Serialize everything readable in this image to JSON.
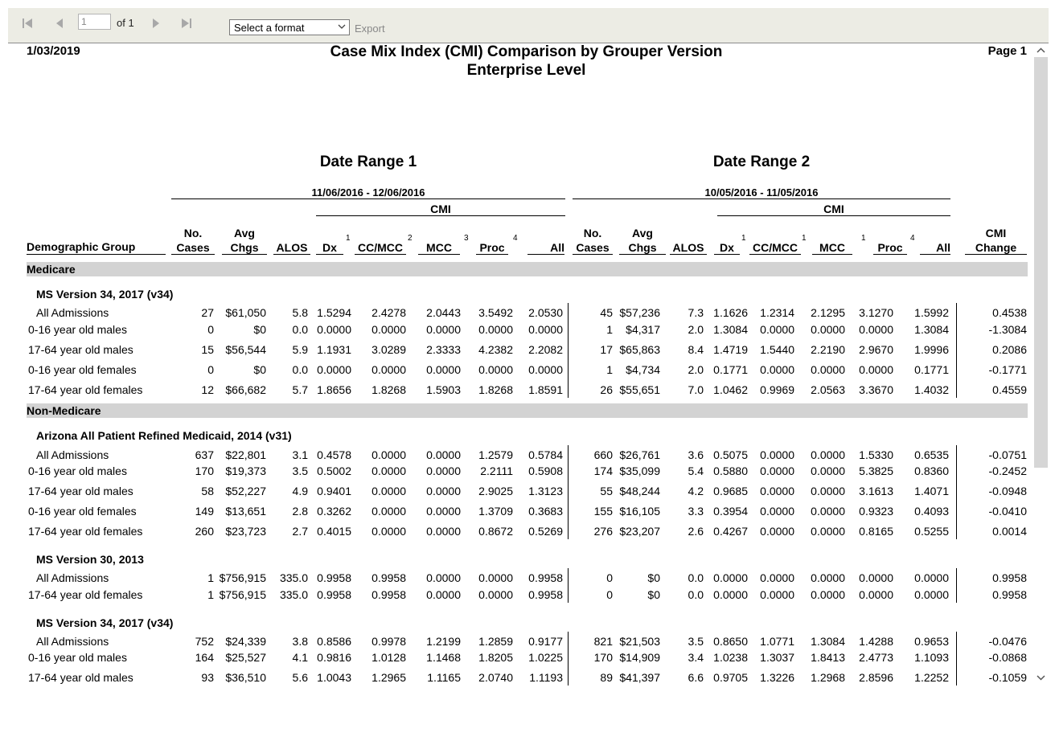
{
  "toolbar": {
    "page_value": "1",
    "page_count_label": "of 1",
    "format_select": "Select a format",
    "export_label": "Export",
    "icons": [
      "first-page-icon",
      "previous-page-icon",
      "next-page-icon",
      "last-page-icon"
    ]
  },
  "report": {
    "date": "1/03/2019",
    "title": "Case Mix Index (CMI) Comparison by Grouper Version",
    "subtitle": "Enterprise Level",
    "page_label": "Page 1",
    "range1_title": "Date Range 1",
    "range2_title": "Date Range 2",
    "range1_dates": "11/06/2016 - 12/06/2016",
    "range2_dates": "10/05/2016 - 11/05/2016",
    "cmi_label": "CMI",
    "columns": {
      "demographic": "Demographic Group",
      "no_cases_1": "No.",
      "no_cases_2": "Cases",
      "avg_chgs_1": "Avg",
      "avg_chgs_2": "Chgs",
      "alos": "ALOS",
      "dx": "Dx",
      "ccmcc": "CC/MCC",
      "mcc": "MCC",
      "proc": "Proc",
      "all": "All",
      "cmi_change_1": "CMI",
      "cmi_change_2": "Change"
    },
    "superscripts_range1": {
      "dx": "1",
      "ccmcc": "2",
      "mcc": "3",
      "proc": "4"
    },
    "superscripts_range2": {
      "dx": "1",
      "ccmcc": "1",
      "mcc": "1",
      "proc": "4"
    },
    "sections": [
      {
        "name": "Medicare",
        "groups": [
          {
            "name": "MS Version 34, 2017 (v34)",
            "rows": [
              {
                "label": "All Admissions",
                "r1": [
                  "27",
                  "$61,050",
                  "5.8",
                  "1.5294",
                  "2.4278",
                  "2.0443",
                  "3.5492",
                  "2.0530"
                ],
                "r2": [
                  "45",
                  "$57,236",
                  "7.3",
                  "1.1626",
                  "1.2314",
                  "2.1295",
                  "3.1270",
                  "1.5992"
                ],
                "chg": "0.4538"
              },
              {
                "label": "0-16 year old males",
                "r1": [
                  "0",
                  "$0",
                  "0.0",
                  "0.0000",
                  "0.0000",
                  "0.0000",
                  "0.0000",
                  "0.0000"
                ],
                "r2": [
                  "1",
                  "$4,317",
                  "2.0",
                  "1.3084",
                  "0.0000",
                  "0.0000",
                  "0.0000",
                  "1.3084"
                ],
                "chg": "-1.3084"
              },
              {
                "label": "17-64 year old males",
                "r1": [
                  "15",
                  "$56,544",
                  "5.9",
                  "1.1931",
                  "3.0289",
                  "2.3333",
                  "4.2382",
                  "2.2082"
                ],
                "r2": [
                  "17",
                  "$65,863",
                  "8.4",
                  "1.4719",
                  "1.5440",
                  "2.2190",
                  "2.9670",
                  "1.9996"
                ],
                "chg": "0.2086"
              },
              {
                "label": "0-16 year old females",
                "r1": [
                  "0",
                  "$0",
                  "0.0",
                  "0.0000",
                  "0.0000",
                  "0.0000",
                  "0.0000",
                  "0.0000"
                ],
                "r2": [
                  "1",
                  "$4,734",
                  "2.0",
                  "0.1771",
                  "0.0000",
                  "0.0000",
                  "0.0000",
                  "0.1771"
                ],
                "chg": "-0.1771"
              },
              {
                "label": "17-64 year old females",
                "r1": [
                  "12",
                  "$66,682",
                  "5.7",
                  "1.8656",
                  "1.8268",
                  "1.5903",
                  "1.8268",
                  "1.8591"
                ],
                "r2": [
                  "26",
                  "$55,651",
                  "7.0",
                  "1.0462",
                  "0.9969",
                  "2.0563",
                  "3.3670",
                  "1.4032"
                ],
                "chg": "0.4559"
              }
            ]
          }
        ]
      },
      {
        "name": "Non-Medicare",
        "groups": [
          {
            "name": "Arizona All Patient Refined Medicaid, 2014 (v31)",
            "rows": [
              {
                "label": "All Admissions",
                "r1": [
                  "637",
                  "$22,801",
                  "3.1",
                  "0.4578",
                  "0.0000",
                  "0.0000",
                  "1.2579",
                  "0.5784"
                ],
                "r2": [
                  "660",
                  "$26,761",
                  "3.6",
                  "0.5075",
                  "0.0000",
                  "0.0000",
                  "1.5330",
                  "0.6535"
                ],
                "chg": "-0.0751"
              },
              {
                "label": "0-16 year old males",
                "r1": [
                  "170",
                  "$19,373",
                  "3.5",
                  "0.5002",
                  "0.0000",
                  "0.0000",
                  "2.2111",
                  "0.5908"
                ],
                "r2": [
                  "174",
                  "$35,099",
                  "5.4",
                  "0.5880",
                  "0.0000",
                  "0.0000",
                  "5.3825",
                  "0.8360"
                ],
                "chg": "-0.2452"
              },
              {
                "label": "17-64 year old males",
                "r1": [
                  "58",
                  "$52,227",
                  "4.9",
                  "0.9401",
                  "0.0000",
                  "0.0000",
                  "2.9025",
                  "1.3123"
                ],
                "r2": [
                  "55",
                  "$48,244",
                  "4.2",
                  "0.9685",
                  "0.0000",
                  "0.0000",
                  "3.1613",
                  "1.4071"
                ],
                "chg": "-0.0948"
              },
              {
                "label": "0-16 year old females",
                "r1": [
                  "149",
                  "$13,651",
                  "2.8",
                  "0.3262",
                  "0.0000",
                  "0.0000",
                  "1.3709",
                  "0.3683"
                ],
                "r2": [
                  "155",
                  "$16,105",
                  "3.3",
                  "0.3954",
                  "0.0000",
                  "0.0000",
                  "0.9323",
                  "0.4093"
                ],
                "chg": "-0.0410"
              },
              {
                "label": "17-64 year old females",
                "r1": [
                  "260",
                  "$23,723",
                  "2.7",
                  "0.4015",
                  "0.0000",
                  "0.0000",
                  "0.8672",
                  "0.5269"
                ],
                "r2": [
                  "276",
                  "$23,207",
                  "2.6",
                  "0.4267",
                  "0.0000",
                  "0.0000",
                  "0.8165",
                  "0.5255"
                ],
                "chg": "0.0014"
              }
            ]
          },
          {
            "name": "MS Version 30, 2013",
            "rows": [
              {
                "label": "All Admissions",
                "r1": [
                  "1",
                  "$756,915",
                  "335.0",
                  "0.9958",
                  "0.9958",
                  "0.0000",
                  "0.0000",
                  "0.9958"
                ],
                "r2": [
                  "0",
                  "$0",
                  "0.0",
                  "0.0000",
                  "0.0000",
                  "0.0000",
                  "0.0000",
                  "0.0000"
                ],
                "chg": "0.9958"
              },
              {
                "label": "17-64 year old females",
                "r1": [
                  "1",
                  "$756,915",
                  "335.0",
                  "0.9958",
                  "0.9958",
                  "0.0000",
                  "0.0000",
                  "0.9958"
                ],
                "r2": [
                  "0",
                  "$0",
                  "0.0",
                  "0.0000",
                  "0.0000",
                  "0.0000",
                  "0.0000",
                  "0.0000"
                ],
                "chg": "0.9958"
              }
            ]
          },
          {
            "name": "MS Version 34, 2017 (v34)",
            "rows": [
              {
                "label": "All Admissions",
                "r1": [
                  "752",
                  "$24,339",
                  "3.8",
                  "0.8586",
                  "0.9978",
                  "1.2199",
                  "1.2859",
                  "0.9177"
                ],
                "r2": [
                  "821",
                  "$21,503",
                  "3.5",
                  "0.8650",
                  "1.0771",
                  "1.3084",
                  "1.4288",
                  "0.9653"
                ],
                "chg": "-0.0476"
              },
              {
                "label": "0-16 year old males",
                "r1": [
                  "164",
                  "$25,527",
                  "4.1",
                  "0.9816",
                  "1.0128",
                  "1.1468",
                  "1.8205",
                  "1.0225"
                ],
                "r2": [
                  "170",
                  "$14,909",
                  "3.4",
                  "1.0238",
                  "1.3037",
                  "1.8413",
                  "2.4773",
                  "1.1093"
                ],
                "chg": "-0.0868"
              },
              {
                "label": "17-64 year old males",
                "r1": [
                  "93",
                  "$36,510",
                  "5.6",
                  "1.0043",
                  "1.2965",
                  "1.1165",
                  "2.0740",
                  "1.1193"
                ],
                "r2": [
                  "89",
                  "$41,397",
                  "6.6",
                  "0.9705",
                  "1.3226",
                  "1.2968",
                  "2.8596",
                  "1.2252"
                ],
                "chg": "-0.1059"
              }
            ]
          }
        ]
      }
    ]
  }
}
